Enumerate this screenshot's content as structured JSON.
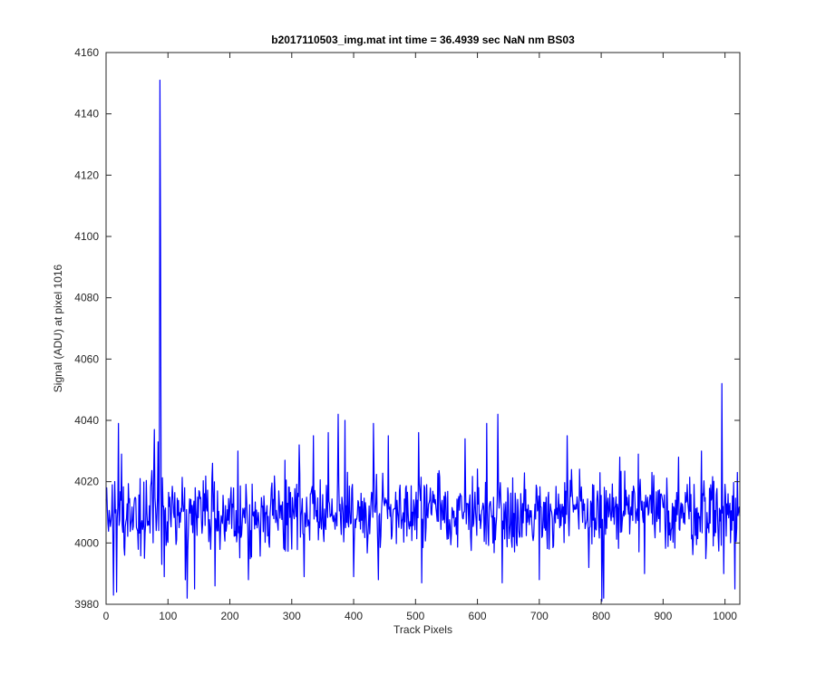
{
  "chart_data": {
    "type": "line",
    "title": "b2017110503_img.mat int time = 36.4939 sec  NaN nm BS03",
    "xlabel": "Track Pixels",
    "ylabel": "Signal (ADU) at pixel 1016",
    "xlim": [
      0,
      1024
    ],
    "ylim": [
      3980,
      4160
    ],
    "xticks": [
      0,
      100,
      200,
      300,
      400,
      500,
      600,
      700,
      800,
      900,
      1000
    ],
    "yticks": [
      3980,
      4000,
      4020,
      4040,
      4060,
      4080,
      4100,
      4120,
      4140,
      4160
    ],
    "grid": false,
    "legend": "none",
    "line_color": "#0000ff",
    "series": [
      {
        "baseline": 4010,
        "noise_amplitude": 8,
        "peaks": [
          {
            "x": 1,
            "y": 4018
          },
          {
            "x": 10,
            "y": 4019
          },
          {
            "x": 12,
            "y": 3983
          },
          {
            "x": 17,
            "y": 3984
          },
          {
            "x": 20,
            "y": 4039
          },
          {
            "x": 25,
            "y": 4029
          },
          {
            "x": 30,
            "y": 3996
          },
          {
            "x": 55,
            "y": 4021
          },
          {
            "x": 62,
            "y": 3995
          },
          {
            "x": 78,
            "y": 4037
          },
          {
            "x": 84,
            "y": 4033
          },
          {
            "x": 87,
            "y": 4151
          },
          {
            "x": 88,
            "y": 4100
          },
          {
            "x": 90,
            "y": 3993
          },
          {
            "x": 94,
            "y": 3989
          },
          {
            "x": 128,
            "y": 3988
          },
          {
            "x": 131,
            "y": 3982
          },
          {
            "x": 143,
            "y": 3985
          },
          {
            "x": 172,
            "y": 4026
          },
          {
            "x": 176,
            "y": 3986
          },
          {
            "x": 213,
            "y": 4030
          },
          {
            "x": 230,
            "y": 3988
          },
          {
            "x": 289,
            "y": 4027
          },
          {
            "x": 312,
            "y": 4032
          },
          {
            "x": 320,
            "y": 3989
          },
          {
            "x": 335,
            "y": 4035
          },
          {
            "x": 359,
            "y": 4036
          },
          {
            "x": 375,
            "y": 4042
          },
          {
            "x": 386,
            "y": 4040
          },
          {
            "x": 400,
            "y": 3989
          },
          {
            "x": 432,
            "y": 4039
          },
          {
            "x": 440,
            "y": 3988
          },
          {
            "x": 456,
            "y": 4035
          },
          {
            "x": 505,
            "y": 4036
          },
          {
            "x": 510,
            "y": 3987
          },
          {
            "x": 580,
            "y": 4034
          },
          {
            "x": 615,
            "y": 4039
          },
          {
            "x": 633,
            "y": 4042
          },
          {
            "x": 640,
            "y": 3987
          },
          {
            "x": 700,
            "y": 3988
          },
          {
            "x": 745,
            "y": 4035
          },
          {
            "x": 780,
            "y": 3992
          },
          {
            "x": 801,
            "y": 3981
          },
          {
            "x": 804,
            "y": 3982
          },
          {
            "x": 830,
            "y": 4028
          },
          {
            "x": 860,
            "y": 4029
          },
          {
            "x": 870,
            "y": 3990
          },
          {
            "x": 925,
            "y": 4028
          },
          {
            "x": 962,
            "y": 4030
          },
          {
            "x": 995,
            "y": 4052
          },
          {
            "x": 998,
            "y": 3990
          },
          {
            "x": 1016,
            "y": 3985
          },
          {
            "x": 1020,
            "y": 4023
          }
        ]
      }
    ]
  }
}
